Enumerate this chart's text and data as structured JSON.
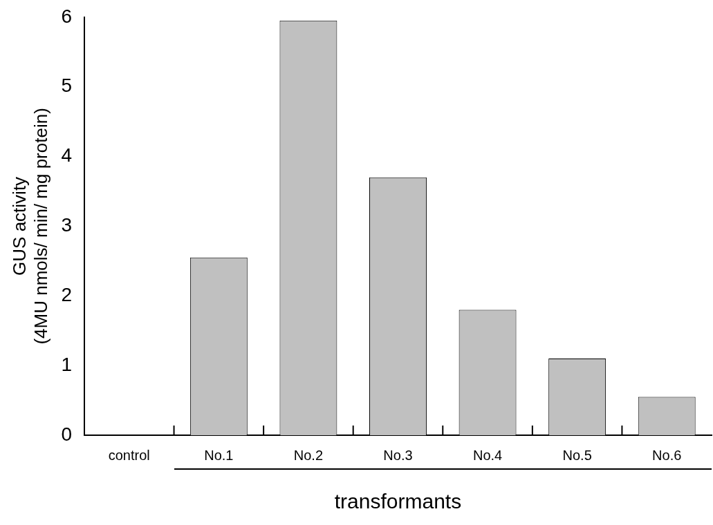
{
  "chart_data": {
    "type": "bar",
    "categories": [
      "control",
      "No.1",
      "No.2",
      "No.3",
      "No.4",
      "No.5",
      "No.6"
    ],
    "values": [
      0,
      2.55,
      5.95,
      3.7,
      1.8,
      1.1,
      0.55
    ],
    "color": "#c0c0c0",
    "ylim": [
      0,
      6
    ],
    "yticks": [
      0,
      1,
      2,
      3,
      4,
      5,
      6
    ],
    "grid": false,
    "legend": false,
    "xlabel": "transformants",
    "ylabel": "GUS activity\n(4MU nmols/ min/ mg protein)"
  }
}
